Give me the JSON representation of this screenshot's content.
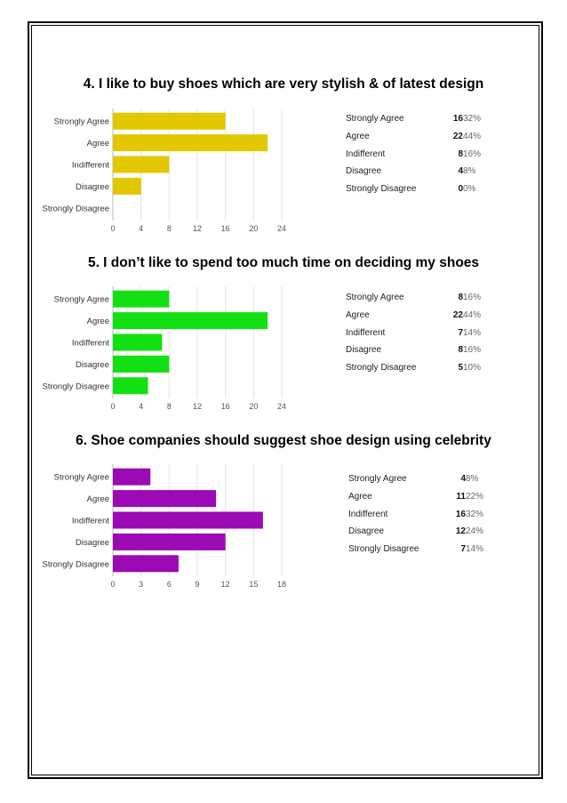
{
  "chart_data": [
    {
      "type": "bar",
      "title": "4. I like to buy shoes which are very stylish & of latest design",
      "categories": [
        "Strongly Agree",
        "Agree",
        "Indifferent",
        "Disagree",
        "Strongly Disagree"
      ],
      "values": [
        16,
        22,
        8,
        4,
        0
      ],
      "percents": [
        "32%",
        "44%",
        "16%",
        "8%",
        "0%"
      ],
      "xticks": [
        0,
        4,
        8,
        12,
        16,
        20,
        24
      ],
      "xlim": [
        0,
        24
      ],
      "color": "#e2c800"
    },
    {
      "type": "bar",
      "title": "5. I don’t like to spend too much time on deciding my shoes",
      "categories": [
        "Strongly Agree",
        "Agree",
        "Indifferent",
        "Disagree",
        "Strongly Disagree"
      ],
      "values": [
        8,
        22,
        7,
        8,
        5
      ],
      "percents": [
        "16%",
        "44%",
        "14%",
        "16%",
        "10%"
      ],
      "xticks": [
        0,
        4,
        8,
        12,
        16,
        20,
        24
      ],
      "xlim": [
        0,
        24
      ],
      "color": "#12e012"
    },
    {
      "type": "bar",
      "title": "6. Shoe companies should suggest shoe design using celebrity",
      "categories": [
        "Strongly Agree",
        "Agree",
        "Indifferent",
        "Disagree",
        "Strongly Disagree"
      ],
      "values": [
        4,
        11,
        16,
        12,
        7
      ],
      "percents": [
        "8%",
        "22%",
        "32%",
        "24%",
        "14%"
      ],
      "xticks": [
        0,
        3,
        6,
        9,
        12,
        15,
        18
      ],
      "xlim": [
        0,
        18
      ],
      "color": "#9b0ab5"
    }
  ]
}
